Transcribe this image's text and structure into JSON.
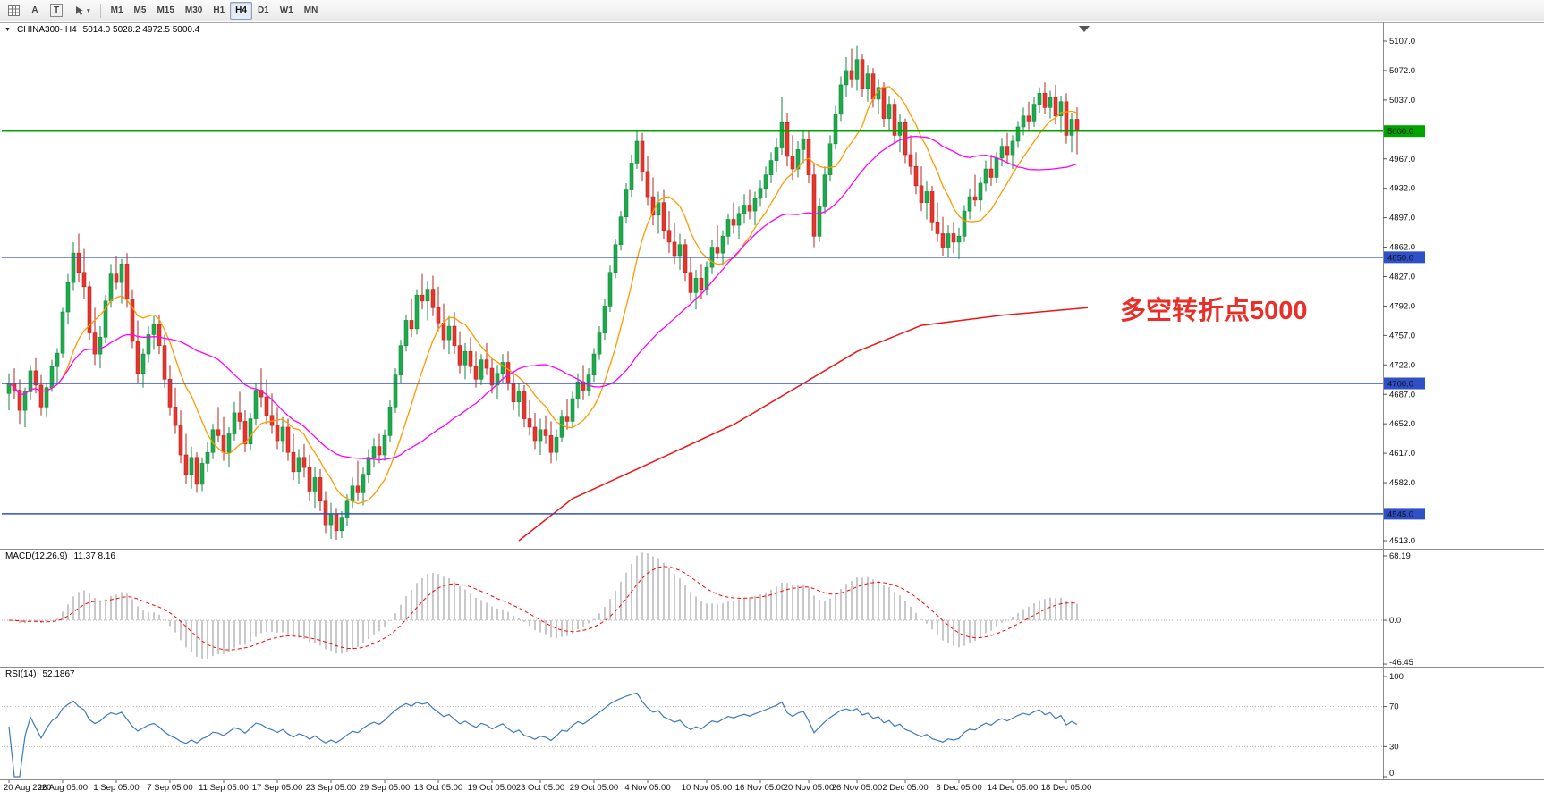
{
  "toolbar": {
    "tools": {
      "text_label": "A",
      "frame_label": "T"
    },
    "timeframes": [
      "M1",
      "M5",
      "M15",
      "M30",
      "H1",
      "H4",
      "D1",
      "W1",
      "MN"
    ],
    "active_timeframe": "H4"
  },
  "chart": {
    "title_text": "CHINA300-,H4",
    "ohlc_text": "5014.0 5028.2 4972.5 5000.4"
  },
  "indicators": {
    "macd": {
      "label": "MACD(12,26,9)",
      "values": "11.37 8.16",
      "axis_labels": [
        "68.19",
        "0.0",
        "-46.45"
      ],
      "axis_values": [
        68.19,
        0,
        -46.45
      ]
    },
    "rsi": {
      "label": "RSI(14)",
      "value": "52.1867",
      "axis_labels": [
        "100",
        "70",
        "30",
        "0"
      ],
      "axis_values": [
        100,
        70,
        30,
        0
      ],
      "levels": [
        70,
        30
      ]
    }
  },
  "chart_data": {
    "type": "candlestick",
    "symbol": "CHINA300-",
    "timeframe": "H4",
    "price_axis": {
      "min": 4513.0,
      "max": 5107.0,
      "ticks": [
        5107,
        5072,
        5037,
        4967,
        4932,
        4897,
        4862,
        4827,
        4792,
        4757,
        4722,
        4687,
        4652,
        4617,
        4582,
        4513
      ]
    },
    "hlines": [
      {
        "value": 5000.0,
        "label": "5000.0",
        "color": "#00a400"
      },
      {
        "value": 4850.0,
        "label": "4850.0",
        "color": "#3050c8"
      },
      {
        "value": 4700.0,
        "label": "4700.0",
        "color": "#3050c8"
      },
      {
        "value": 4545.0,
        "label": "4545.0",
        "color": "#3050c8"
      }
    ],
    "annotations": [
      {
        "text": "多空转折点5000",
        "color": "#e8302a",
        "price": 4792,
        "bar": 207
      }
    ],
    "x_labels": [
      {
        "text": "20 Aug 2020",
        "bar": 0
      },
      {
        "text": "26 Aug 05:00",
        "bar": 10
      },
      {
        "text": "1 Sep 05:00",
        "bar": 20
      },
      {
        "text": "7 Sep 05:00",
        "bar": 30
      },
      {
        "text": "11 Sep 05:00",
        "bar": 40
      },
      {
        "text": "17 Sep 05:00",
        "bar": 50
      },
      {
        "text": "23 Sep 05:00",
        "bar": 60
      },
      {
        "text": "29 Sep 05:00",
        "bar": 70
      },
      {
        "text": "13 Oct 05:00",
        "bar": 80
      },
      {
        "text": "19 Oct 05:00",
        "bar": 90
      },
      {
        "text": "23 Oct 05:00",
        "bar": 99
      },
      {
        "text": "29 Oct 05:00",
        "bar": 109
      },
      {
        "text": "4 Nov 05:00",
        "bar": 119
      },
      {
        "text": "10 Nov 05:00",
        "bar": 130
      },
      {
        "text": "16 Nov 05:00",
        "bar": 140
      },
      {
        "text": "20 Nov 05:00",
        "bar": 149
      },
      {
        "text": "26 Nov 05:00",
        "bar": 158
      },
      {
        "text": "2 Dec 05:00",
        "bar": 167
      },
      {
        "text": "8 Dec 05:00",
        "bar": 177
      },
      {
        "text": "14 Dec 05:00",
        "bar": 187
      },
      {
        "text": "18 Dec 05:00",
        "bar": 197
      }
    ],
    "moving_averages": {
      "fast": {
        "period": 10,
        "color": "#ff9900"
      },
      "mid": {
        "period": 30,
        "color": "#ff00ff"
      },
      "slow": {
        "color": "#f01414",
        "anchors": [
          [
            95,
            4513
          ],
          [
            105,
            4563
          ],
          [
            119,
            4604
          ],
          [
            135,
            4651
          ],
          [
            148,
            4700
          ],
          [
            158,
            4738
          ],
          [
            170,
            4769
          ],
          [
            185,
            4781
          ],
          [
            201,
            4790
          ]
        ]
      }
    },
    "colors": {
      "up": "#1fa94d",
      "up_line": "#128a3c",
      "down": "#e5352c",
      "down_line": "#b5261f",
      "macd_hist": "#c9c9c9",
      "macd_signal": "#ff0000",
      "rsi": "#3d79c2"
    },
    "candles": [
      [
        4688,
        4712,
        4668,
        4700
      ],
      [
        4700,
        4718,
        4682,
        4692
      ],
      [
        4692,
        4705,
        4652,
        4668
      ],
      [
        4668,
        4695,
        4648,
        4690
      ],
      [
        4690,
        4722,
        4680,
        4715
      ],
      [
        4715,
        4730,
        4688,
        4698
      ],
      [
        4698,
        4710,
        4662,
        4672
      ],
      [
        4672,
        4700,
        4660,
        4695
      ],
      [
        4695,
        4728,
        4690,
        4720
      ],
      [
        4720,
        4742,
        4700,
        4736
      ],
      [
        4736,
        4790,
        4730,
        4785
      ],
      [
        4785,
        4830,
        4770,
        4820
      ],
      [
        4820,
        4868,
        4810,
        4855
      ],
      [
        4855,
        4878,
        4820,
        4832
      ],
      [
        4832,
        4860,
        4800,
        4815
      ],
      [
        4815,
        4822,
        4752,
        4760
      ],
      [
        4760,
        4790,
        4722,
        4735
      ],
      [
        4735,
        4768,
        4718,
        4755
      ],
      [
        4755,
        4805,
        4748,
        4798
      ],
      [
        4798,
        4842,
        4790,
        4830
      ],
      [
        4830,
        4852,
        4812,
        4820
      ],
      [
        4820,
        4848,
        4795,
        4842
      ],
      [
        4842,
        4855,
        4790,
        4800
      ],
      [
        4800,
        4812,
        4742,
        4750
      ],
      [
        4750,
        4775,
        4700,
        4712
      ],
      [
        4712,
        4742,
        4695,
        4735
      ],
      [
        4735,
        4768,
        4725,
        4758
      ],
      [
        4758,
        4780,
        4740,
        4770
      ],
      [
        4770,
        4782,
        4735,
        4745
      ],
      [
        4745,
        4758,
        4695,
        4705
      ],
      [
        4705,
        4722,
        4662,
        4672
      ],
      [
        4672,
        4695,
        4640,
        4650
      ],
      [
        4650,
        4668,
        4605,
        4615
      ],
      [
        4615,
        4640,
        4580,
        4592
      ],
      [
        4592,
        4625,
        4575,
        4612
      ],
      [
        4612,
        4618,
        4570,
        4580
      ],
      [
        4580,
        4612,
        4572,
        4605
      ],
      [
        4605,
        4630,
        4595,
        4618
      ],
      [
        4618,
        4652,
        4610,
        4645
      ],
      [
        4645,
        4672,
        4630,
        4638
      ],
      [
        4638,
        4660,
        4608,
        4618
      ],
      [
        4618,
        4648,
        4600,
        4640
      ],
      [
        4640,
        4678,
        4632,
        4665
      ],
      [
        4665,
        4690,
        4645,
        4655
      ],
      [
        4655,
        4668,
        4618,
        4628
      ],
      [
        4628,
        4665,
        4620,
        4658
      ],
      [
        4658,
        4700,
        4650,
        4692
      ],
      [
        4692,
        4718,
        4672,
        4684
      ],
      [
        4684,
        4705,
        4652,
        4662
      ],
      [
        4662,
        4688,
        4640,
        4650
      ],
      [
        4650,
        4672,
        4622,
        4632
      ],
      [
        4632,
        4660,
        4618,
        4648
      ],
      [
        4648,
        4658,
        4608,
        4618
      ],
      [
        4618,
        4640,
        4585,
        4595
      ],
      [
        4595,
        4622,
        4580,
        4612
      ],
      [
        4612,
        4628,
        4588,
        4600
      ],
      [
        4600,
        4615,
        4560,
        4572
      ],
      [
        4572,
        4600,
        4552,
        4588
      ],
      [
        4588,
        4598,
        4548,
        4560
      ],
      [
        4560,
        4572,
        4522,
        4532
      ],
      [
        4532,
        4558,
        4515,
        4545
      ],
      [
        4545,
        4552,
        4514,
        4525
      ],
      [
        4525,
        4548,
        4516,
        4540
      ],
      [
        4540,
        4568,
        4530,
        4560
      ],
      [
        4560,
        4588,
        4552,
        4578
      ],
      [
        4578,
        4608,
        4560,
        4570
      ],
      [
        4570,
        4600,
        4555,
        4592
      ],
      [
        4592,
        4622,
        4582,
        4612
      ],
      [
        4612,
        4635,
        4600,
        4625
      ],
      [
        4625,
        4640,
        4605,
        4615
      ],
      [
        4615,
        4645,
        4608,
        4638
      ],
      [
        4638,
        4680,
        4630,
        4672
      ],
      [
        4672,
        4718,
        4665,
        4710
      ],
      [
        4710,
        4752,
        4700,
        4745
      ],
      [
        4745,
        4782,
        4738,
        4775
      ],
      [
        4775,
        4800,
        4755,
        4765
      ],
      [
        4765,
        4812,
        4758,
        4805
      ],
      [
        4805,
        4830,
        4788,
        4798
      ],
      [
        4798,
        4822,
        4775,
        4812
      ],
      [
        4812,
        4828,
        4780,
        4790
      ],
      [
        4790,
        4815,
        4762,
        4772
      ],
      [
        4772,
        4795,
        4740,
        4752
      ],
      [
        4752,
        4780,
        4735,
        4768
      ],
      [
        4768,
        4785,
        4735,
        4745
      ],
      [
        4745,
        4762,
        4712,
        4722
      ],
      [
        4722,
        4748,
        4705,
        4738
      ],
      [
        4738,
        4755,
        4712,
        4720
      ],
      [
        4720,
        4738,
        4695,
        4705
      ],
      [
        4705,
        4735,
        4698,
        4728
      ],
      [
        4728,
        4748,
        4710,
        4718
      ],
      [
        4718,
        4730,
        4688,
        4698
      ],
      [
        4698,
        4722,
        4682,
        4712
      ],
      [
        4712,
        4735,
        4700,
        4725
      ],
      [
        4725,
        4738,
        4692,
        4700
      ],
      [
        4700,
        4715,
        4668,
        4678
      ],
      [
        4678,
        4700,
        4660,
        4690
      ],
      [
        4690,
        4698,
        4648,
        4658
      ],
      [
        4658,
        4680,
        4638,
        4648
      ],
      [
        4648,
        4665,
        4622,
        4632
      ],
      [
        4632,
        4658,
        4615,
        4645
      ],
      [
        4645,
        4662,
        4628,
        4638
      ],
      [
        4638,
        4655,
        4605,
        4618
      ],
      [
        4618,
        4645,
        4608,
        4636
      ],
      [
        4636,
        4668,
        4630,
        4660
      ],
      [
        4660,
        4682,
        4645,
        4655
      ],
      [
        4655,
        4690,
        4648,
        4682
      ],
      [
        4682,
        4712,
        4670,
        4702
      ],
      [
        4702,
        4722,
        4680,
        4692
      ],
      [
        4692,
        4718,
        4685,
        4710
      ],
      [
        4710,
        4742,
        4702,
        4735
      ],
      [
        4735,
        4768,
        4728,
        4760
      ],
      [
        4760,
        4800,
        4752,
        4792
      ],
      [
        4792,
        4840,
        4785,
        4832
      ],
      [
        4832,
        4872,
        4825,
        4865
      ],
      [
        4865,
        4905,
        4858,
        4898
      ],
      [
        4898,
        4938,
        4890,
        4930
      ],
      [
        4930,
        4972,
        4922,
        4962
      ],
      [
        4962,
        5000,
        4955,
        4988
      ],
      [
        4988,
        4998,
        4940,
        4952
      ],
      [
        4952,
        4970,
        4912,
        4922
      ],
      [
        4922,
        4945,
        4888,
        4900
      ],
      [
        4900,
        4928,
        4878,
        4915
      ],
      [
        4915,
        4930,
        4872,
        4882
      ],
      [
        4882,
        4905,
        4855,
        4868
      ],
      [
        4868,
        4890,
        4842,
        4852
      ],
      [
        4852,
        4878,
        4835,
        4865
      ],
      [
        4865,
        4872,
        4822,
        4832
      ],
      [
        4832,
        4850,
        4798,
        4808
      ],
      [
        4808,
        4835,
        4788,
        4825
      ],
      [
        4825,
        4842,
        4800,
        4812
      ],
      [
        4812,
        4845,
        4805,
        4838
      ],
      [
        4838,
        4870,
        4830,
        4862
      ],
      [
        4862,
        4888,
        4848,
        4855
      ],
      [
        4855,
        4882,
        4840,
        4875
      ],
      [
        4875,
        4902,
        4865,
        4895
      ],
      [
        4895,
        4915,
        4878,
        4888
      ],
      [
        4888,
        4910,
        4872,
        4902
      ],
      [
        4902,
        4925,
        4890,
        4912
      ],
      [
        4912,
        4930,
        4895,
        4905
      ],
      [
        4905,
        4928,
        4888,
        4920
      ],
      [
        4920,
        4942,
        4910,
        4932
      ],
      [
        4932,
        4958,
        4920,
        4948
      ],
      [
        4948,
        4975,
        4938,
        4965
      ],
      [
        4965,
        4992,
        4952,
        4980
      ],
      [
        4980,
        5040,
        4972,
        5010
      ],
      [
        5010,
        5022,
        4958,
        4970
      ],
      [
        4970,
        4995,
        4942,
        4955
      ],
      [
        4955,
        4988,
        4945,
        4978
      ],
      [
        4978,
        5000,
        4962,
        4990
      ],
      [
        4990,
        5002,
        4938,
        4948
      ],
      [
        4948,
        4962,
        4862,
        4875
      ],
      [
        4875,
        4920,
        4868,
        4910
      ],
      [
        4910,
        4958,
        4902,
        4948
      ],
      [
        4948,
        4995,
        4940,
        4985
      ],
      [
        4985,
        5030,
        4978,
        5020
      ],
      [
        5020,
        5065,
        5012,
        5055
      ],
      [
        5055,
        5088,
        5040,
        5072
      ],
      [
        5072,
        5098,
        5052,
        5062
      ],
      [
        5062,
        5102,
        5048,
        5085
      ],
      [
        5085,
        5092,
        5040,
        5050
      ],
      [
        5050,
        5078,
        5035,
        5068
      ],
      [
        5068,
        5075,
        5028,
        5038
      ],
      [
        5038,
        5062,
        5020,
        5052
      ],
      [
        5052,
        5058,
        5005,
        5015
      ],
      [
        5015,
        5042,
        5000,
        5032
      ],
      [
        5032,
        5038,
        4985,
        4995
      ],
      [
        4995,
        5020,
        4975,
        5010
      ],
      [
        5010,
        5015,
        4962,
        4972
      ],
      [
        4972,
        4995,
        4948,
        4958
      ],
      [
        4958,
        4975,
        4925,
        4935
      ],
      [
        4935,
        4958,
        4905,
        4915
      ],
      [
        4915,
        4940,
        4895,
        4928
      ],
      [
        4928,
        4935,
        4882,
        4892
      ],
      [
        4892,
        4915,
        4868,
        4878
      ],
      [
        4878,
        4898,
        4852,
        4862
      ],
      [
        4862,
        4888,
        4850,
        4878
      ],
      [
        4878,
        4892,
        4855,
        4868
      ],
      [
        4868,
        4885,
        4848,
        4875
      ],
      [
        4875,
        4912,
        4868,
        4905
      ],
      [
        4905,
        4932,
        4895,
        4922
      ],
      [
        4922,
        4948,
        4910,
        4918
      ],
      [
        4918,
        4945,
        4905,
        4938
      ],
      [
        4938,
        4965,
        4928,
        4955
      ],
      [
        4955,
        4972,
        4935,
        4945
      ],
      [
        4945,
        4975,
        4938,
        4968
      ],
      [
        4968,
        4992,
        4958,
        4982
      ],
      [
        4982,
        4998,
        4962,
        4972
      ],
      [
        4972,
        4995,
        4955,
        4988
      ],
      [
        4988,
        5012,
        4980,
        5005
      ],
      [
        5005,
        5028,
        4995,
        5018
      ],
      [
        5018,
        5035,
        5002,
        5012
      ],
      [
        5012,
        5040,
        5005,
        5032
      ],
      [
        5032,
        5052,
        5022,
        5045
      ],
      [
        5045,
        5058,
        5020,
        5028
      ],
      [
        5028,
        5048,
        5015,
        5040
      ],
      [
        5040,
        5055,
        5008,
        5018
      ],
      [
        5018,
        5042,
        4998,
        5035
      ],
      [
        5035,
        5045,
        4985,
        4995
      ],
      [
        4995,
        5022,
        4975,
        5014
      ],
      [
        5014,
        5028.2,
        4972.5,
        5000.4
      ]
    ]
  }
}
